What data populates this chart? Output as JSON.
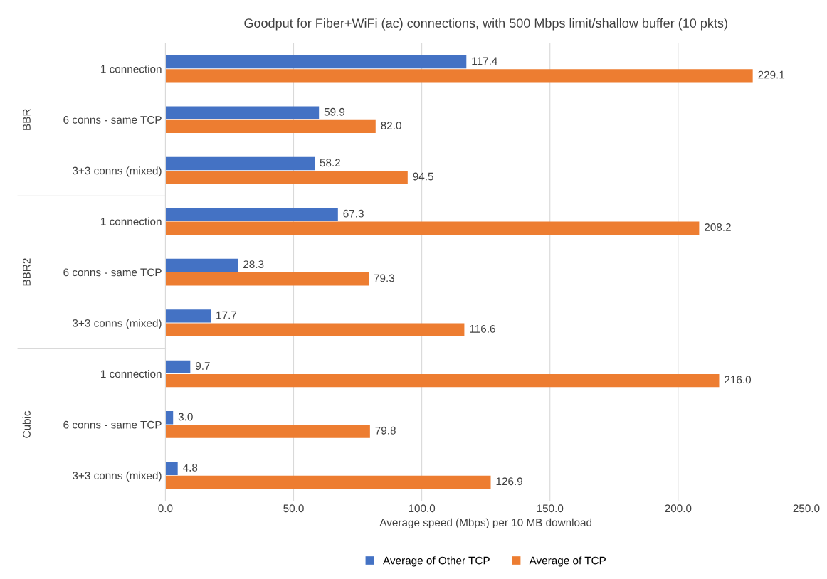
{
  "chart_data": {
    "type": "bar",
    "orientation": "horizontal",
    "title": "Goodput for Fiber+WiFi (ac) connections, with 500 Mbps limit/shallow buffer (10 pkts)",
    "xlabel": "Average speed (Mbps) per 10 MB download",
    "categories": [
      "1 connection",
      "6 conns - same TCP",
      "3+3 conns (mixed)",
      "1 connection",
      "6 conns - same TCP",
      "3+3 conns (mixed)",
      "1 connection",
      "6 conns - same TCP",
      "3+3 conns (mixed)"
    ],
    "annotations": [
      "BBR",
      "BBR2",
      "Cubic"
    ],
    "series": [
      {
        "name": "Average of Other TCP",
        "color": "#4472c4",
        "values": [
          117.4,
          59.9,
          58.2,
          67.3,
          28.3,
          17.7,
          9.7,
          3.0,
          4.8
        ],
        "value_labels": [
          "117.4",
          "59.9",
          "58.2",
          "67.3",
          "28.3",
          "17.7",
          "9.7",
          "3.0",
          "4.8"
        ]
      },
      {
        "name": "Average of TCP",
        "color": "#ed7d31",
        "values": [
          229.1,
          82.0,
          94.5,
          208.2,
          79.3,
          116.6,
          216.0,
          79.8,
          126.9
        ],
        "value_labels": [
          "229.1",
          "82.0",
          "94.5",
          "208.2",
          "79.3",
          "116.6",
          "216.0",
          "79.8",
          "126.9"
        ]
      }
    ],
    "xlim": [
      0,
      250
    ],
    "xticks": [
      {
        "value": 0,
        "label": "0.0"
      },
      {
        "value": 50,
        "label": "50.0"
      },
      {
        "value": 100,
        "label": "100.0"
      },
      {
        "value": 150,
        "label": "150.0"
      },
      {
        "value": 200,
        "label": "200.0"
      },
      {
        "value": 250,
        "label": "250.0"
      }
    ],
    "grid": "x",
    "legend": "bottom"
  }
}
